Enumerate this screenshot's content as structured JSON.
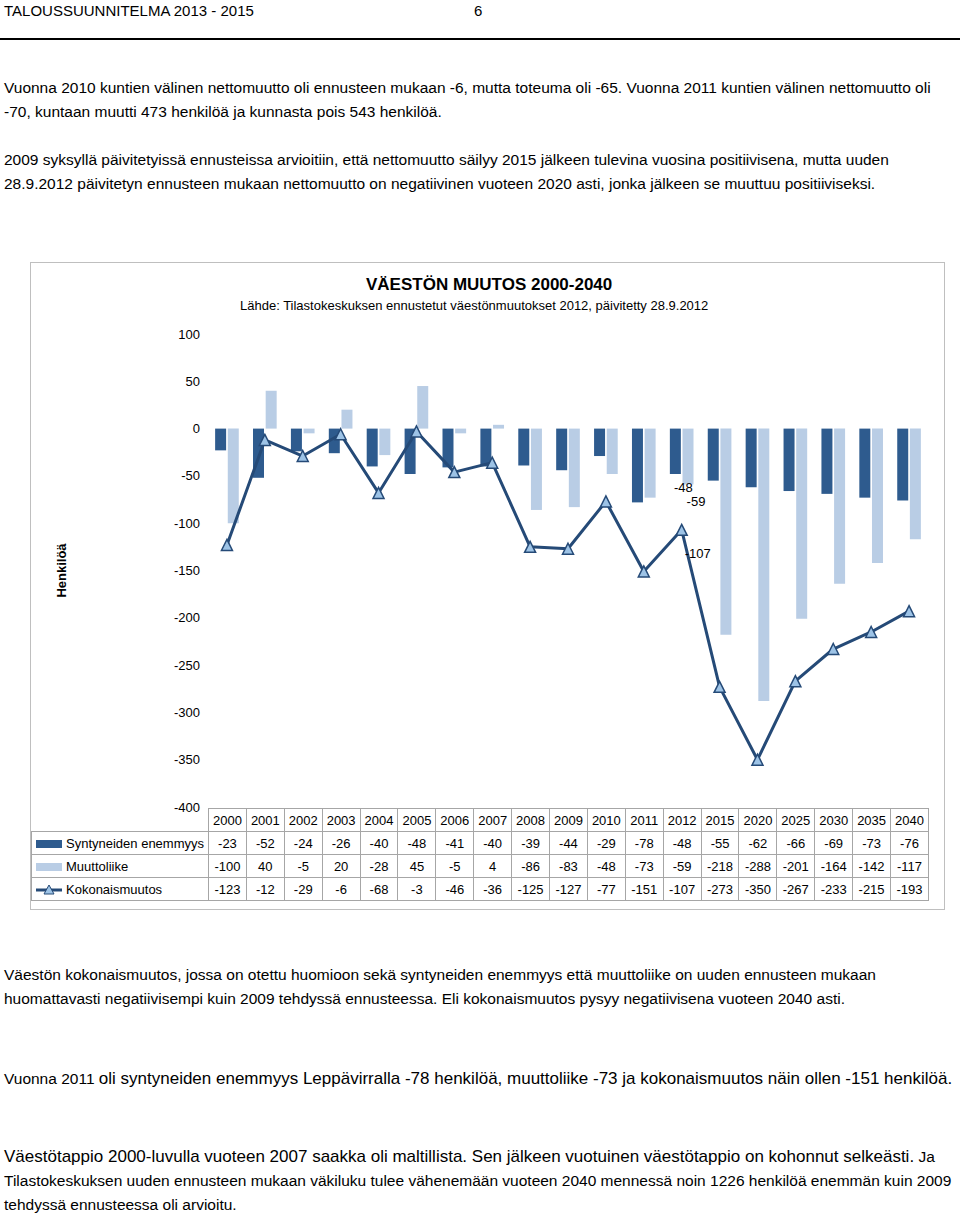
{
  "header": {
    "title": "TALOUSSUUNNITELMA 2013 - 2015",
    "page": "6"
  },
  "paragraphs_before": [
    [
      {
        "text": "Vuonna 2010 kuntien välinen nettomuutto oli ennusteen mukaan -6, mutta toteuma oli -65. Vuonna 2011 kuntien välinen nettomuutto oli -70, kuntaan muutti 473 henkilöä ja kunnasta pois 543 henkilöä."
      }
    ],
    [
      {
        "text": "2009 syksyllä päivitetyissä ennusteissa arvioitiin, että nettomuutto säilyy 2015 jälkeen tulevina vuosina positiivisena, mutta uuden 28.9.2012 päivitetyn ennusteen mukaan nettomuutto on negatiivinen vuoteen 2020 asti, jonka jälkeen se muuttuu positiiviseksi."
      }
    ]
  ],
  "chart_data": {
    "type": "bar",
    "title": "VÄESTÖN MUUTOS 2000-2040",
    "subtitle": "Lähde: Tilastokeskuksen ennustetut väestönmuutokset 2012, päivitetty 28.9.2012",
    "y_label": "Henkilöä",
    "categories": [
      "2000",
      "2001",
      "2002",
      "2003",
      "2004",
      "2005",
      "2006",
      "2007",
      "2008",
      "2009",
      "2010",
      "2011",
      "2012",
      "2015",
      "2020",
      "2025",
      "2030",
      "2035",
      "2040"
    ],
    "series": [
      {
        "name": "Syntyneiden enemmyys",
        "type": "bar",
        "color": "#2e5b8e",
        "values": [
          -23,
          -52,
          -24,
          -26,
          -40,
          -48,
          -41,
          -40,
          -39,
          -44,
          -29,
          -78,
          -48,
          -55,
          -62,
          -66,
          -69,
          -73,
          -76
        ]
      },
      {
        "name": "Muuttoliike",
        "type": "bar",
        "color": "#b9cde5",
        "values": [
          -100,
          40,
          -5,
          20,
          -28,
          45,
          -5,
          4,
          -86,
          -83,
          -48,
          -73,
          -59,
          -218,
          -288,
          -201,
          -164,
          -142,
          -117
        ]
      },
      {
        "name": "Kokonaismuutos",
        "type": "line",
        "color": "#254a77",
        "marker": "triangle",
        "values": [
          -123,
          -12,
          -29,
          -6,
          -68,
          -3,
          -46,
          -36,
          -125,
          -127,
          -77,
          -151,
          -107,
          -273,
          -350,
          -267,
          -233,
          -215,
          -193
        ]
      }
    ],
    "annotations": [
      {
        "category": "2012",
        "series": "Syntyneiden enemmyys",
        "text": "-48"
      },
      {
        "category": "2012",
        "series": "Muuttoliike",
        "text": "-59"
      },
      {
        "category": "2012",
        "series": "Kokonaismuutos",
        "text": "-107"
      }
    ],
    "ylim": [
      -400,
      100
    ],
    "yticks": [
      -400,
      -350,
      -300,
      -250,
      -200,
      -150,
      -100,
      -50,
      0,
      50,
      100
    ],
    "grid": false
  },
  "paragraphs_after": [
    [
      {
        "text": "Väestön kokonaismuutos, jossa on otettu huomioon sekä syntyneiden enemmyys että muuttoliike on uuden ennusteen mukaan huomattavasti negatiivisempi kuin 2009 tehdyssä ennusteessa. Eli kokonaismuutos pysyy negatiivisena vuoteen 2040 asti."
      }
    ],
    [
      {
        "text": "Vuonna 2011 "
      },
      {
        "text": "oli syntyneiden enemmyys Leppävirralla -78 henkilöä, muuttoliike -73 ja kokonaismuutos näin ollen -151 henkilöä.",
        "emphasized": true
      }
    ],
    [
      {
        "text": "Väestötappio 2000-luvulla vuoteen 2007 saakka oli maltillista.  Sen jälkeen vuotuinen väestötappio on kohonnut selkeästi.",
        "emphasized": true
      },
      {
        "text": " Ja Tilastokeskuksen uuden ennusteen mukaan väkiluku tulee vähenemään vuoteen 2040 mennessä noin 1226 henkilöä enemmän kuin 2009 tehdyssä ennusteessa oli arvioitu."
      }
    ]
  ]
}
